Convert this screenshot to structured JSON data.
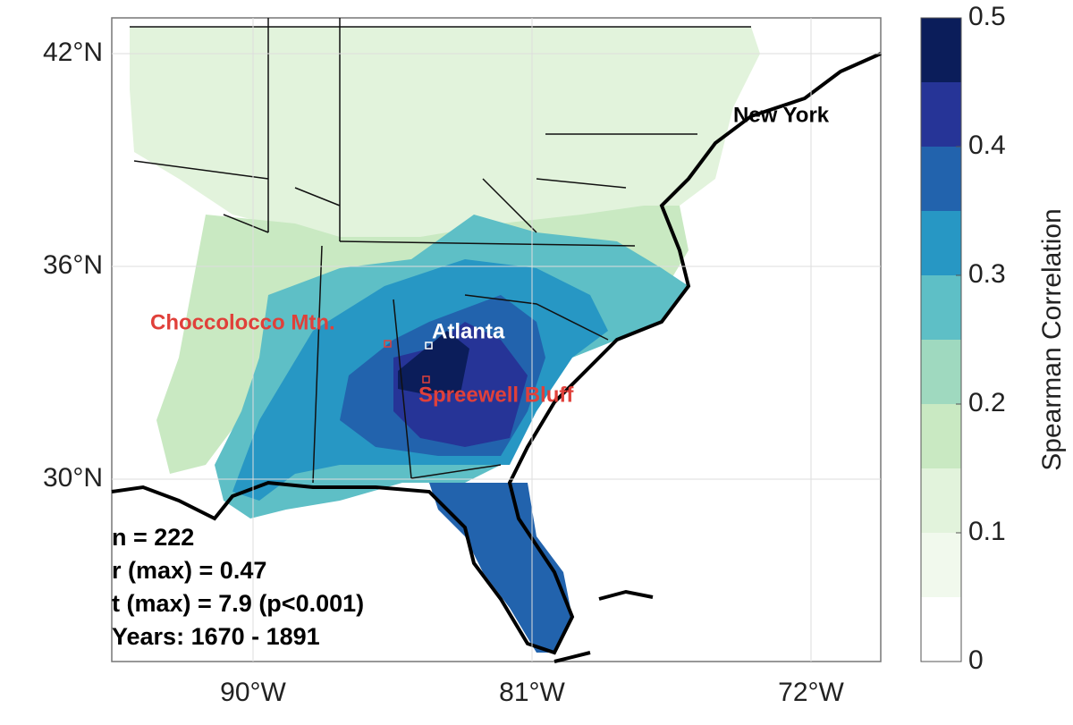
{
  "map": {
    "lat_ticks": [
      {
        "value": 42,
        "label": "42°N"
      },
      {
        "value": 36,
        "label": "36°N"
      },
      {
        "value": 30,
        "label": "30°N"
      }
    ],
    "lon_ticks": [
      {
        "value": -90,
        "label": "90°W"
      },
      {
        "value": -81,
        "label": "81°W"
      },
      {
        "value": -72,
        "label": "72°W"
      }
    ],
    "places": [
      {
        "label": "New York",
        "color": "#000000"
      },
      {
        "label": "Atlanta",
        "color": "#ffffff"
      },
      {
        "label": "Choccolocco Mtn.",
        "color": "#e0403a"
      },
      {
        "label": "Spreewell Bluff",
        "color": "#e0403a"
      }
    ],
    "stats": [
      "n = 222",
      "r (max) = 0.47",
      "t (max) = 7.9 (p<0.001)",
      "Years: 1670 - 1891"
    ]
  },
  "colorbar": {
    "label": "Spearman Correlation",
    "lim": [
      0,
      0.5
    ],
    "ticks": [
      0,
      0.1,
      0.2,
      0.3,
      0.4,
      0.5
    ],
    "bounds": [
      0,
      0.05,
      0.1,
      0.15,
      0.2,
      0.25,
      0.3,
      0.35,
      0.4,
      0.45,
      0.5
    ],
    "colors": [
      "#ffffff",
      "#f1f9ed",
      "#e2f3dc",
      "#c9e9c2",
      "#9fd9bf",
      "#5ebfc6",
      "#2797c4",
      "#2263ad",
      "#263497",
      "#0b1d5a"
    ]
  }
}
